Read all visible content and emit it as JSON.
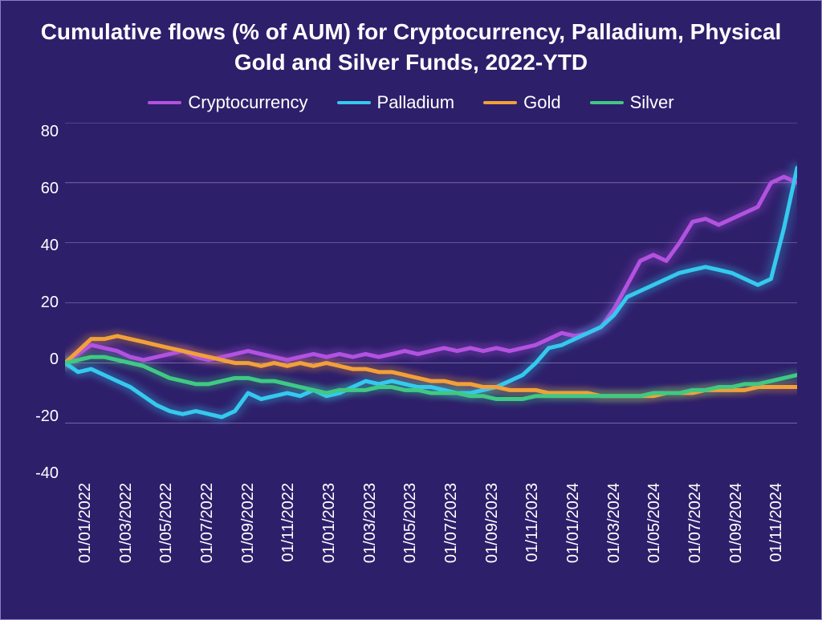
{
  "chart": {
    "type": "line",
    "title": "Cumulative flows (% of AUM) for Cryptocurrency, Palladium, Physical Gold and Silver Funds, 2022-YTD",
    "background_color": "#2e1f6b",
    "border_color": "#8a7fc7",
    "title_color": "#ffffff",
    "title_fontsize": 28,
    "label_fontsize": 20,
    "legend_fontsize": 22,
    "grid_color": "#b8b0d8",
    "ylim": [
      -40,
      80
    ],
    "yticks": [
      80,
      60,
      40,
      20,
      0,
      -20,
      -40
    ],
    "xlabels": [
      "01/01/2022",
      "01/03/2022",
      "01/05/2022",
      "01/07/2022",
      "01/09/2022",
      "01/11/2022",
      "01/01/2023",
      "01/03/2023",
      "01/05/2023",
      "01/07/2023",
      "01/09/2023",
      "01/11/2023",
      "01/01/2024",
      "01/03/2024",
      "01/05/2024",
      "01/07/2024",
      "01/09/2024",
      "01/11/2024"
    ],
    "line_width": 5,
    "glow_width": 16,
    "glow_opacity": 0.25,
    "series": [
      {
        "name": "Cryptocurrency",
        "color": "#b252e0",
        "values": [
          0,
          3,
          6,
          5,
          4,
          2,
          1,
          2,
          3,
          4,
          2,
          1,
          2,
          3,
          4,
          3,
          2,
          1,
          2,
          3,
          2,
          3,
          2,
          3,
          2,
          3,
          4,
          3,
          4,
          5,
          4,
          5,
          4,
          5,
          4,
          5,
          6,
          8,
          10,
          9,
          10,
          12,
          18,
          26,
          34,
          36,
          34,
          40,
          47,
          48,
          46,
          48,
          50,
          52,
          60,
          62,
          60
        ]
      },
      {
        "name": "Palladium",
        "color": "#35c9ee",
        "values": [
          0,
          -3,
          -2,
          -4,
          -6,
          -8,
          -11,
          -14,
          -16,
          -17,
          -16,
          -17,
          -18,
          -16,
          -10,
          -12,
          -11,
          -10,
          -11,
          -9,
          -11,
          -10,
          -8,
          -6,
          -7,
          -6,
          -7,
          -8,
          -8,
          -9,
          -10,
          -10,
          -9,
          -8,
          -6,
          -4,
          0,
          5,
          6,
          8,
          10,
          12,
          16,
          22,
          24,
          26,
          28,
          30,
          31,
          32,
          31,
          30,
          28,
          26,
          28,
          45,
          65
        ]
      },
      {
        "name": "Gold",
        "color": "#f2a039",
        "values": [
          0,
          4,
          8,
          8,
          9,
          8,
          7,
          6,
          5,
          4,
          3,
          2,
          1,
          0,
          0,
          -1,
          0,
          -1,
          0,
          -1,
          0,
          -1,
          -2,
          -2,
          -3,
          -3,
          -4,
          -5,
          -6,
          -6,
          -7,
          -7,
          -8,
          -8,
          -9,
          -9,
          -9,
          -10,
          -10,
          -10,
          -10,
          -11,
          -11,
          -11,
          -11,
          -11,
          -10,
          -10,
          -10,
          -9,
          -9,
          -9,
          -9,
          -8,
          -8,
          -8,
          -8
        ]
      },
      {
        "name": "Silver",
        "color": "#3fc983",
        "values": [
          0,
          1,
          2,
          2,
          1,
          0,
          -1,
          -3,
          -5,
          -6,
          -7,
          -7,
          -6,
          -5,
          -5,
          -6,
          -6,
          -7,
          -8,
          -9,
          -10,
          -9,
          -9,
          -9,
          -8,
          -8,
          -9,
          -9,
          -10,
          -10,
          -10,
          -11,
          -11,
          -12,
          -12,
          -12,
          -11,
          -11,
          -11,
          -11,
          -11,
          -11,
          -11,
          -11,
          -11,
          -10,
          -10,
          -10,
          -9,
          -9,
          -8,
          -8,
          -7,
          -7,
          -6,
          -5,
          -4
        ]
      }
    ]
  }
}
